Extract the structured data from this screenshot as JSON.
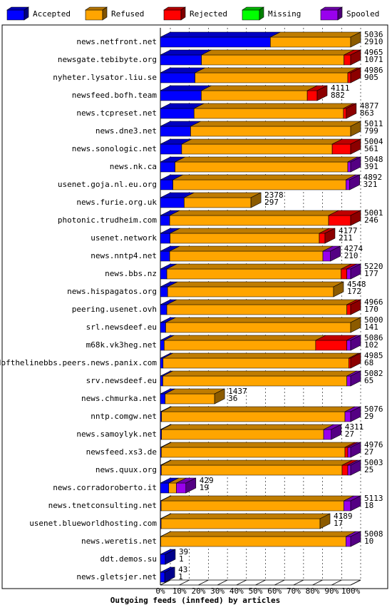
{
  "chart_data": {
    "type": "bar",
    "orientation": "horizontal",
    "stacked": true,
    "xlabel": "Outgoing feeds (innfeed) by articles",
    "categories": [
      "news.netfront.net",
      "newsgate.tebibyte.org",
      "nyheter.lysator.liu.se",
      "newsfeed.bofh.team",
      "news.tcpreset.net",
      "news.dne3.net",
      "news.sonologic.net",
      "news.nk.ca",
      "usenet.goja.nl.eu.org",
      "news.furie.org.uk",
      "photonic.trudheim.com",
      "usenet.network",
      "news.nntp4.net",
      "news.bbs.nz",
      "news.hispagatos.org",
      "peering.usenet.ovh",
      "srl.newsdeef.eu",
      "m68k.vk3heg.net",
      "endofthelinebbs.peers.news.panix.com",
      "srv.newsdeef.eu",
      "news.chmurka.net",
      "nntp.comgw.net",
      "news.samoylyk.net",
      "newsfeed.xs3.de",
      "news.quux.org",
      "news.corradoroberto.it",
      "news.tnetconsulting.net",
      "usenet.blueworldhosting.com",
      "news.weretis.net",
      "ddt.demos.su",
      "news.gletsjer.net"
    ],
    "series": [
      {
        "name": "Accepted",
        "color": "#0000ff",
        "values": [
          57.8,
          21.6,
          18.2,
          21.5,
          17.7,
          15.9,
          11.2,
          7.7,
          6.6,
          12.5,
          4.9,
          5.1,
          4.9,
          3.4,
          3.8,
          3.4,
          2.8,
          2.0,
          1.4,
          1.3,
          2.5,
          0.6,
          0.6,
          0.5,
          0.5,
          4.4,
          0.4,
          0.4,
          0.2,
          2.6,
          2.3
        ]
      },
      {
        "name": "Refused",
        "color": "#ffa500",
        "values": [
          42.2,
          74.9,
          80.3,
          55.7,
          78.5,
          84.1,
          79.1,
          90.8,
          90.9,
          35.1,
          83.5,
          78.4,
          80.5,
          91.6,
          87.2,
          94.6,
          97.2,
          79.6,
          97.6,
          96.7,
          26,
          96.4,
          85.2,
          96.5,
          95,
          4,
          96,
          83.5,
          97.3,
          0,
          0
        ]
      },
      {
        "name": "Rejected",
        "color": "#ff0000",
        "values": [
          0,
          3.5,
          1.5,
          5.2,
          1.5,
          0,
          9.7,
          0,
          0,
          0,
          11.6,
          3,
          0,
          3,
          0,
          2,
          0,
          16.4,
          1,
          0,
          0,
          0,
          0,
          1.5,
          3,
          0,
          0,
          0,
          0,
          0,
          0
        ]
      },
      {
        "name": "Missing",
        "color": "#00ff00",
        "values": [
          0,
          0,
          0,
          0,
          0,
          0,
          0,
          0,
          0,
          0,
          0,
          0,
          0,
          0,
          0,
          0,
          0,
          0,
          0,
          0,
          0,
          0,
          0,
          0,
          0,
          0,
          0,
          0,
          0,
          0,
          0
        ]
      },
      {
        "name": "Spooled",
        "color": "#9900ee",
        "values": [
          0,
          0,
          0,
          0,
          0,
          0,
          0,
          1.5,
          2,
          0,
          0,
          0,
          4,
          2,
          0,
          0,
          0,
          2,
          0,
          2,
          0,
          3,
          4,
          1.5,
          1.5,
          5,
          3.6,
          0,
          2.5,
          0,
          0
        ]
      }
    ],
    "offered": [
      5036,
      4965,
      4986,
      4111,
      4877,
      5011,
      5004,
      5048,
      4892,
      2378,
      5001,
      4177,
      4274,
      5220,
      4548,
      4966,
      5000,
      5086,
      4985,
      5082,
      1437,
      5076,
      4311,
      4976,
      5003,
      429,
      5113,
      4189,
      5008,
      39,
      43
    ],
    "accepted": [
      2910,
      1071,
      905,
      882,
      863,
      799,
      561,
      391,
      321,
      297,
      246,
      211,
      210,
      177,
      172,
      170,
      141,
      102,
      68,
      65,
      36,
      29,
      27,
      27,
      25,
      19,
      18,
      17,
      10,
      1,
      1
    ],
    "xlim": [
      0,
      100
    ],
    "xticks": [
      {
        "value": 0,
        "label": "0%"
      },
      {
        "value": 10,
        "label": "10%"
      },
      {
        "value": 20,
        "label": "20%"
      },
      {
        "value": 30,
        "label": "30%"
      },
      {
        "value": 40,
        "label": "40%"
      },
      {
        "value": 50,
        "label": "50%"
      },
      {
        "value": 60,
        "label": "60%"
      },
      {
        "value": 70,
        "label": "70%"
      },
      {
        "value": 80,
        "label": "80%"
      },
      {
        "value": 90,
        "label": "90%"
      },
      {
        "value": 100,
        "label": "100%"
      }
    ],
    "grid": true
  }
}
